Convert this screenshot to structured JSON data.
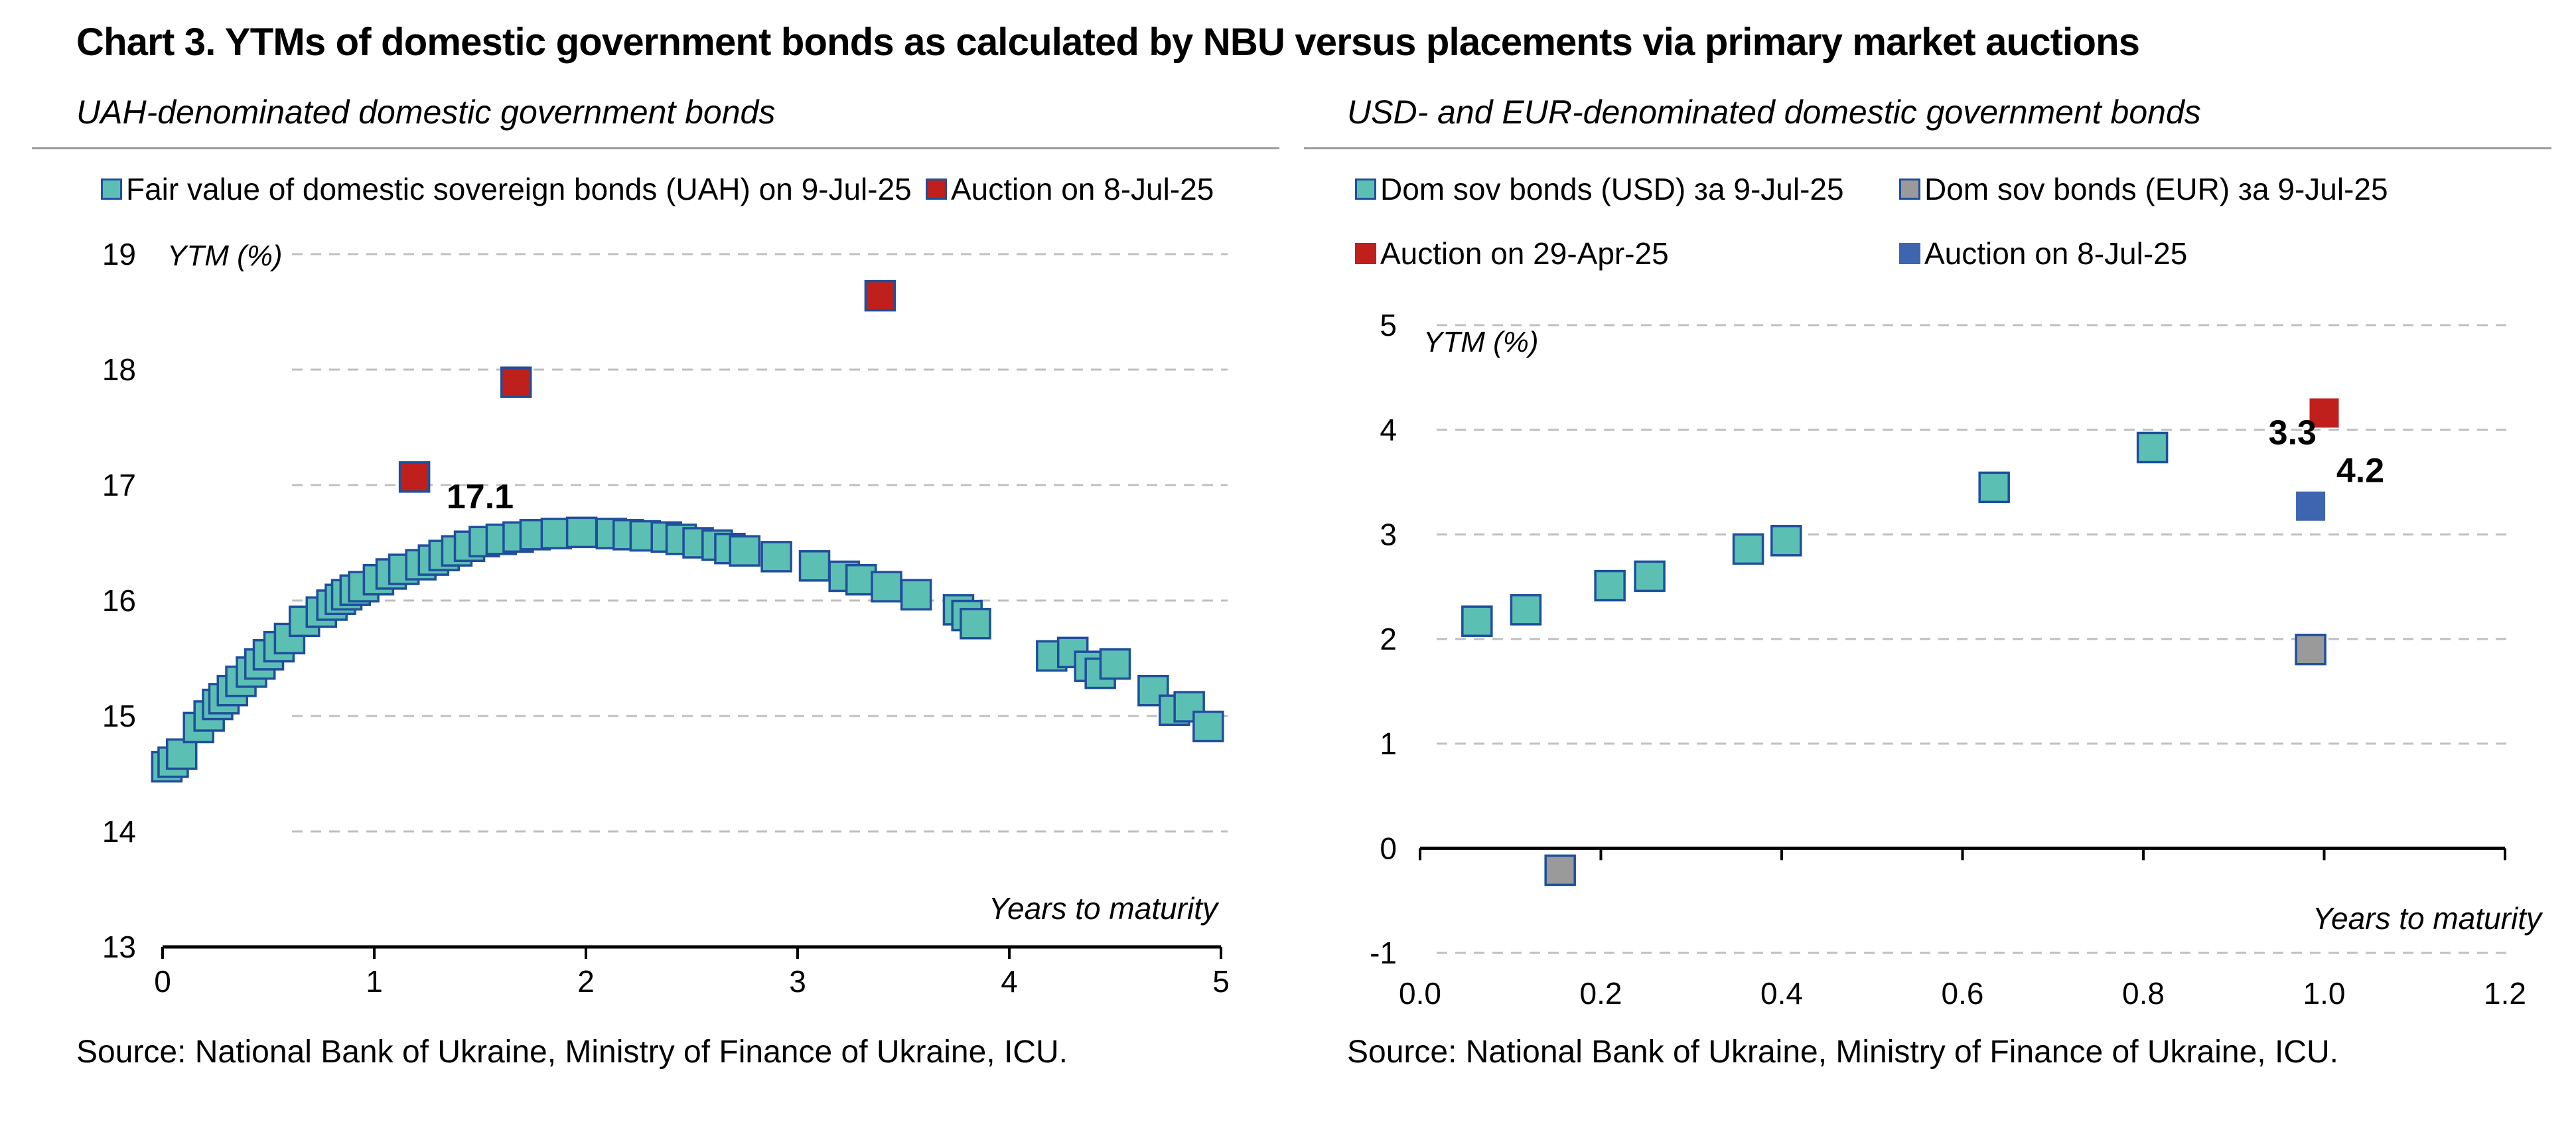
{
  "title": "Chart 3. YTMs of domestic government bonds as calculated by NBU versus placements via primary market auctions",
  "source_left": "Source: National Bank of Ukraine, Ministry of Finance of Ukraine, ICU.",
  "source_right": "Source: National Bank of Ukraine, Ministry of Finance of Ukraine, ICU.",
  "colors": {
    "teal": "#5cbfb4",
    "tealBorder": "#1f4f9c",
    "red": "#c0201b",
    "grey": "#9a9a9a",
    "blue": "#3d65b0",
    "grid": "#bfbfbf",
    "axis": "#000000"
  },
  "chart_data": [
    {
      "type": "scatter",
      "title": "UAH-denominated domestic government bonds",
      "xlabel": "Years to maturity",
      "ylabel": "YTM (%)",
      "xlim": [
        0,
        5
      ],
      "ylim": [
        13,
        19
      ],
      "xticks": [
        "0",
        "1",
        "2",
        "3",
        "4",
        "5"
      ],
      "yticks": [
        "13",
        "14",
        "15",
        "16",
        "17",
        "18",
        "19"
      ],
      "grid": "horizontal-dashed",
      "legend": "top",
      "series": [
        {
          "name": "Fair value of domestic sovereign bonds (UAH) on 9-Jul-25",
          "color": "teal",
          "points": [
            [
              0.02,
              14.56
            ],
            [
              0.05,
              14.6
            ],
            [
              0.09,
              14.67
            ],
            [
              0.17,
              14.9
            ],
            [
              0.22,
              15.0
            ],
            [
              0.26,
              15.1
            ],
            [
              0.29,
              15.15
            ],
            [
              0.33,
              15.22
            ],
            [
              0.37,
              15.3
            ],
            [
              0.42,
              15.38
            ],
            [
              0.46,
              15.45
            ],
            [
              0.5,
              15.53
            ],
            [
              0.55,
              15.6
            ],
            [
              0.6,
              15.67
            ],
            [
              0.67,
              15.82
            ],
            [
              0.75,
              15.9
            ],
            [
              0.8,
              15.96
            ],
            [
              0.84,
              16.01
            ],
            [
              0.87,
              16.05
            ],
            [
              0.91,
              16.09
            ],
            [
              0.95,
              16.12
            ],
            [
              1.02,
              16.18
            ],
            [
              1.08,
              16.23
            ],
            [
              1.14,
              16.27
            ],
            [
              1.22,
              16.31
            ],
            [
              1.28,
              16.35
            ],
            [
              1.33,
              16.39
            ],
            [
              1.39,
              16.43
            ],
            [
              1.45,
              16.47
            ],
            [
              1.52,
              16.51
            ],
            [
              1.6,
              16.53
            ],
            [
              1.68,
              16.55
            ],
            [
              1.76,
              16.57
            ],
            [
              1.86,
              16.58
            ],
            [
              1.98,
              16.59
            ],
            [
              2.12,
              16.58
            ],
            [
              2.2,
              16.57
            ],
            [
              2.28,
              16.56
            ],
            [
              2.38,
              16.55
            ],
            [
              2.45,
              16.53
            ],
            [
              2.53,
              16.5
            ],
            [
              2.62,
              16.48
            ],
            [
              2.68,
              16.45
            ],
            [
              2.75,
              16.43
            ],
            [
              2.9,
              16.38
            ],
            [
              3.08,
              16.3
            ],
            [
              3.22,
              16.21
            ],
            [
              3.3,
              16.18
            ],
            [
              3.42,
              16.12
            ],
            [
              3.56,
              16.05
            ],
            [
              3.76,
              15.92
            ],
            [
              3.8,
              15.87
            ],
            [
              3.84,
              15.8
            ],
            [
              4.2,
              15.52
            ],
            [
              4.3,
              15.55
            ],
            [
              4.38,
              15.43
            ],
            [
              4.43,
              15.37
            ],
            [
              4.5,
              15.45
            ],
            [
              4.68,
              15.22
            ],
            [
              4.78,
              15.05
            ],
            [
              4.85,
              15.08
            ],
            [
              4.94,
              14.91
            ]
          ]
        },
        {
          "name": "Auction on 8-Jul-25",
          "color": "red",
          "points": [
            [
              1.19,
              17.07
            ],
            [
              1.67,
              17.89
            ],
            [
              3.39,
              18.64
            ]
          ]
        }
      ],
      "annotations": [
        {
          "text": "17.1",
          "x": 1.5,
          "y": 16.8
        }
      ]
    },
    {
      "type": "scatter",
      "title": "USD- and EUR-denominated domestic government bonds",
      "xlabel": "Years to maturity",
      "ylabel": "YTM (%)",
      "xlim": [
        0.0,
        1.2
      ],
      "ylim": [
        -1,
        5
      ],
      "xticks": [
        "0.0",
        "0.2",
        "0.4",
        "0.6",
        "0.8",
        "1.0",
        "1.2"
      ],
      "yticks": [
        "-1",
        "0",
        "1",
        "2",
        "3",
        "4",
        "5"
      ],
      "grid": "horizontal-dashed",
      "legend": "top",
      "series": [
        {
          "name": "Dom sov bonds (USD) за 9-Jul-25",
          "color": "teal",
          "points": [
            [
              0.063,
              2.17
            ],
            [
              0.117,
              2.28
            ],
            [
              0.21,
              2.51
            ],
            [
              0.254,
              2.6
            ],
            [
              0.363,
              2.86
            ],
            [
              0.405,
              2.94
            ],
            [
              0.635,
              3.45
            ],
            [
              0.81,
              3.83
            ]
          ]
        },
        {
          "name": "Dom sov bonds (EUR) за 9-Jul-25",
          "color": "grey",
          "points": [
            [
              0.155,
              -0.21
            ],
            [
              0.985,
              1.9
            ]
          ]
        },
        {
          "name": "Auction on 29-Apr-25",
          "color": "red",
          "points": [
            [
              1.0,
              4.16
            ]
          ]
        },
        {
          "name": "Auction on 8-Jul-25",
          "color": "blue",
          "points": [
            [
              0.985,
              3.27
            ]
          ]
        }
      ],
      "annotations": [
        {
          "text": "3.3",
          "x": 0.965,
          "y": 3.86
        },
        {
          "text": "4.2",
          "x": 1.04,
          "y": 3.5
        }
      ]
    }
  ]
}
